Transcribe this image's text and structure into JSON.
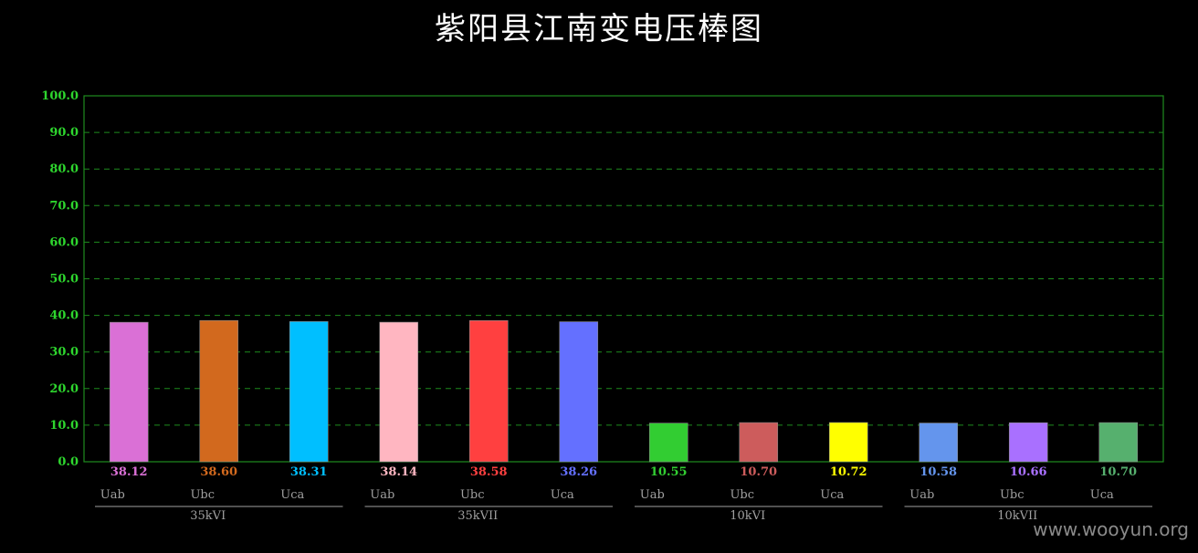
{
  "title": "紫阳县江南变电压棒图",
  "watermark": "www.wooyun.org",
  "chart_data": {
    "type": "bar",
    "title": "紫阳县江南变电压棒图",
    "ylim": [
      0,
      100
    ],
    "yticks": [
      "0.0",
      "10.0",
      "20.0",
      "30.0",
      "40.0",
      "50.0",
      "60.0",
      "70.0",
      "80.0",
      "90.0",
      "100.0"
    ],
    "grid": true,
    "groups": [
      {
        "name": "35kVI",
        "bars": [
          {
            "label": "Uab",
            "value": 38.12,
            "value_text": "38.12",
            "color": "#da70d6"
          },
          {
            "label": "Ubc",
            "value": 38.6,
            "value_text": "38.60",
            "color": "#d2691e"
          },
          {
            "label": "Uca",
            "value": 38.31,
            "value_text": "38.31",
            "color": "#00bfff"
          }
        ]
      },
      {
        "name": "35kVII",
        "bars": [
          {
            "label": "Uab",
            "value": 38.14,
            "value_text": "38.14",
            "color": "#ffb6c1"
          },
          {
            "label": "Ubc",
            "value": 38.58,
            "value_text": "38.58",
            "color": "#ff4040"
          },
          {
            "label": "Uca",
            "value": 38.26,
            "value_text": "38.26",
            "color": "#6470ff"
          }
        ]
      },
      {
        "name": "10kVI",
        "bars": [
          {
            "label": "Uab",
            "value": 10.55,
            "value_text": "10.55",
            "color": "#32cd32"
          },
          {
            "label": "Ubc",
            "value": 10.7,
            "value_text": "10.70",
            "color": "#cd5c5c"
          },
          {
            "label": "Uca",
            "value": 10.72,
            "value_text": "10.72",
            "color": "#ffff00"
          }
        ]
      },
      {
        "name": "10kVII",
        "bars": [
          {
            "label": "Uab",
            "value": 10.58,
            "value_text": "10.58",
            "color": "#6495ed"
          },
          {
            "label": "Ubc",
            "value": 10.66,
            "value_text": "10.66",
            "color": "#a970ff"
          },
          {
            "label": "Uca",
            "value": 10.7,
            "value_text": "10.70",
            "color": "#56b06e"
          }
        ]
      }
    ],
    "colors": {
      "axis": "#1e8c1e",
      "tick_text": "#2ed62e",
      "category_text": "#a0a0a0",
      "group_line": "#a0a0a0"
    }
  }
}
